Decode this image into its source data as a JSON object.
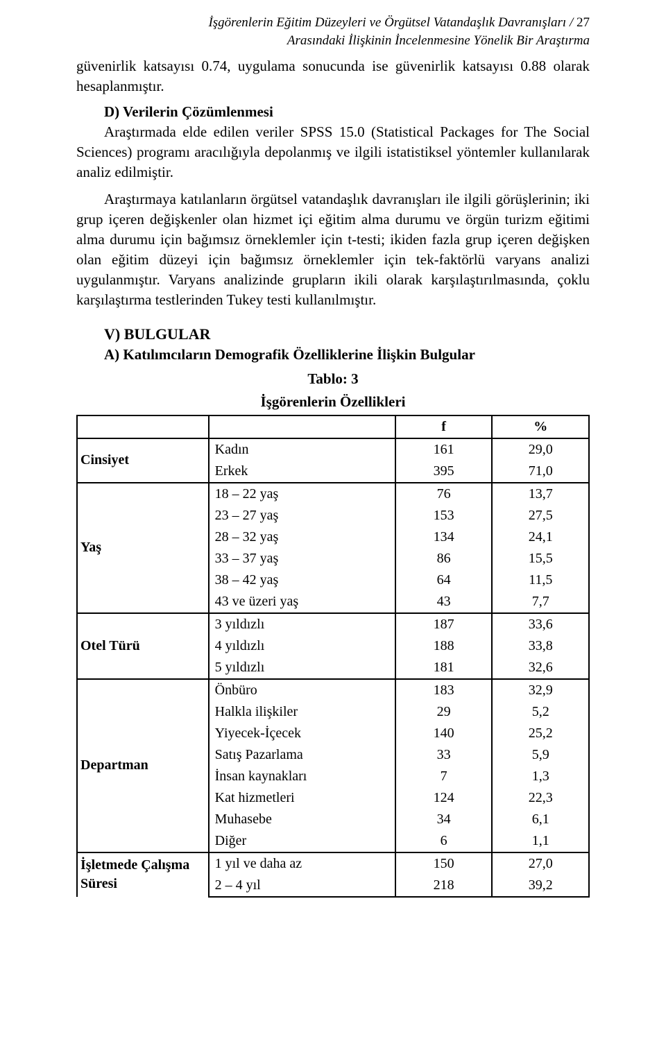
{
  "header": {
    "line1": "İşgörenlerin Eğitim Düzeyleri ve Örgütsel Vatandaşlık Davranışları /",
    "pagenum": "27",
    "line2": "Arasındaki İlişkinin İncelenmesine Yönelik Bir Araştırma"
  },
  "para1": "güvenirlik katsayısı 0.74, uygulama sonucunda ise güvenirlik katsayısı 0.88 olarak hesaplanmıştır.",
  "sectionD": "D) Verilerin Çözümlenmesi",
  "paraD1": "Araştırmada elde edilen veriler SPSS 15.0 (Statistical Packages for The Social Sciences) programı aracılığıyla depolanmış ve ilgili istatistiksel yöntemler kullanılarak analiz edilmiştir.",
  "paraD2": "Araştırmaya katılanların örgütsel vatandaşlık davranışları ile ilgili görüşlerinin; iki grup içeren değişkenler olan hizmet içi eğitim alma durumu ve örgün turizm eğitimi alma durumu için bağımsız örneklemler için t-testi; ikiden fazla grup içeren değişken olan eğitim düzeyi için bağımsız örneklemler için tek-faktörlü varyans analizi uygulanmıştır. Varyans analizinde grupların ikili olarak karşılaştırılmasında, çoklu karşılaştırma testlerinden Tukey testi kullanılmıştır.",
  "sectionV": "V) BULGULAR",
  "sectionA": "A) Katılımcıların Demografik Özelliklerine İlişkin Bulgular",
  "table": {
    "title1": "Tablo: 3",
    "title2": "İşgörenlerin Özellikleri",
    "header_f": "f",
    "header_pct": "%",
    "groups": {
      "cinsiyet": {
        "label": "Cinsiyet",
        "rows": [
          {
            "label": "Kadın",
            "f": "161",
            "pct": "29,0"
          },
          {
            "label": "Erkek",
            "f": "395",
            "pct": "71,0"
          }
        ]
      },
      "yas": {
        "label": "Yaş",
        "rows": [
          {
            "label": "18 – 22 yaş",
            "f": "76",
            "pct": "13,7"
          },
          {
            "label": "23 – 27 yaş",
            "f": "153",
            "pct": "27,5"
          },
          {
            "label": "28 – 32 yaş",
            "f": "134",
            "pct": "24,1"
          },
          {
            "label": "33 – 37 yaş",
            "f": "86",
            "pct": "15,5"
          },
          {
            "label": "38 – 42 yaş",
            "f": "64",
            "pct": "11,5"
          },
          {
            "label": "43 ve üzeri yaş",
            "f": "43",
            "pct": "7,7"
          }
        ]
      },
      "otel": {
        "label": "Otel Türü",
        "rows": [
          {
            "label": "3 yıldızlı",
            "f": "187",
            "pct": "33,6"
          },
          {
            "label": "4 yıldızlı",
            "f": "188",
            "pct": "33,8"
          },
          {
            "label": "5 yıldızlı",
            "f": "181",
            "pct": "32,6"
          }
        ]
      },
      "departman": {
        "label": "Departman",
        "rows": [
          {
            "label": "Önbüro",
            "f": "183",
            "pct": "32,9"
          },
          {
            "label": "Halkla ilişkiler",
            "f": "29",
            "pct": "5,2"
          },
          {
            "label": "Yiyecek-İçecek",
            "f": "140",
            "pct": "25,2"
          },
          {
            "label": "Satış Pazarlama",
            "f": "33",
            "pct": "5,9"
          },
          {
            "label": "İnsan kaynakları",
            "f": "7",
            "pct": "1,3"
          },
          {
            "label": "Kat hizmetleri",
            "f": "124",
            "pct": "22,3"
          },
          {
            "label": "Muhasebe",
            "f": "34",
            "pct": "6,1"
          },
          {
            "label": "Diğer",
            "f": "6",
            "pct": "1,1"
          }
        ]
      },
      "sure": {
        "label": "İşletmede Çalışma Süresi",
        "rows": [
          {
            "label": "1 yıl ve daha az",
            "f": "150",
            "pct": "27,0"
          },
          {
            "label": "2 – 4 yıl",
            "f": "218",
            "pct": "39,2"
          }
        ]
      }
    }
  }
}
